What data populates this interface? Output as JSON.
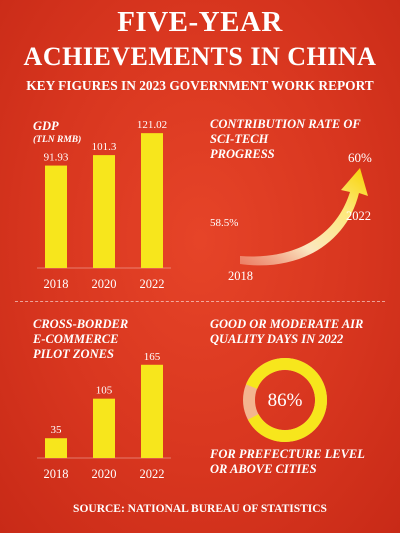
{
  "header": {
    "title_line1": "FIVE-YEAR",
    "title_line2": "ACHIEVEMENTS IN CHINA",
    "subtitle": "KEY FIGURES IN 2023 GOVERNMENT WORK REPORT"
  },
  "footer": {
    "source": "SOURCE: NATIONAL BUREAU OF STATISTICS"
  },
  "colors": {
    "background": "#d8321e",
    "bar": "#f7e61c",
    "text": "#ffffff"
  },
  "chart_data": [
    {
      "type": "bar",
      "title": "GDP",
      "subtitle": "(TLN RMB)",
      "categories": [
        "2018",
        "2020",
        "2022"
      ],
      "values": [
        91.93,
        101.3,
        121.02
      ],
      "value_labels": [
        "91.93",
        "101.3",
        "121.02"
      ],
      "ylim": [
        0,
        140
      ]
    },
    {
      "type": "line",
      "title": "CONTRIBUTION RATE OF SCI-TECH PROGRESS",
      "title_lines": [
        "CONTRIBUTION RATE OF",
        "SCI-TECH",
        "PROGRESS"
      ],
      "x": [
        "2018",
        "2022"
      ],
      "values": [
        58.5,
        60
      ],
      "value_labels": [
        "58.5%",
        "60%"
      ]
    },
    {
      "type": "bar",
      "title": "CROSS-BORDER E-COMMERCE PILOT ZONES",
      "title_lines": [
        "CROSS-BORDER",
        "E-COMMERCE",
        "PILOT ZONES"
      ],
      "categories": [
        "2018",
        "2020",
        "2022"
      ],
      "values": [
        35,
        105,
        165
      ],
      "value_labels": [
        "35",
        "105",
        "165"
      ],
      "ylim": [
        0,
        200
      ]
    },
    {
      "type": "pie",
      "title": "GOOD OR MODERATE AIR QUALITY DAYS IN 2022",
      "title_lines": [
        "GOOD OR MODERATE AIR",
        "QUALITY DAYS IN 2022"
      ],
      "values": [
        86,
        14
      ],
      "value_label": "86%",
      "note_lines": [
        "FOR PREFECTURE LEVEL",
        "OR ABOVE CITIES"
      ]
    }
  ]
}
